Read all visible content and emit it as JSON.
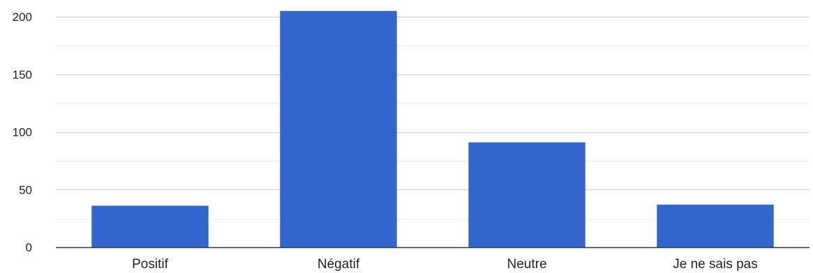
{
  "chart_data": {
    "type": "bar",
    "categories": [
      "Positif",
      "Négatif",
      "Neutre",
      "Je ne sais pas"
    ],
    "values": [
      36,
      205,
      91,
      37
    ],
    "ylim": [
      0,
      200
    ],
    "yticks": [
      0,
      50,
      100,
      150,
      200
    ],
    "minor_gridlines": true,
    "grid": true,
    "bar_color": "#3366cc",
    "gridline_color": "#e0e0e0",
    "axis_color": "#333333"
  }
}
